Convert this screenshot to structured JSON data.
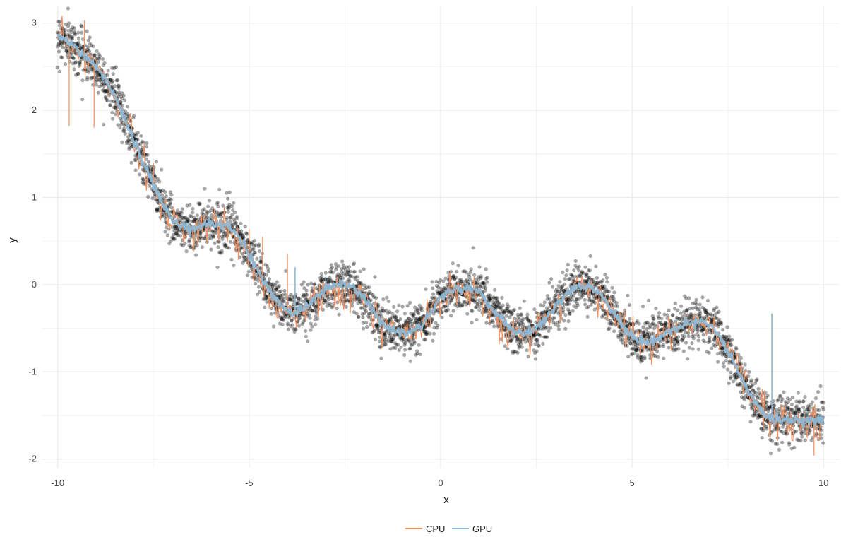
{
  "chart_data": {
    "type": "scatter",
    "xlabel": "x",
    "ylabel": "y",
    "xlim": [
      -10.4,
      10.4
    ],
    "ylim": [
      -2.1,
      3.2
    ],
    "x_ticks": [
      -10,
      -5,
      0,
      5,
      10
    ],
    "x_tick_labels": [
      "-10",
      "-5",
      "0",
      "5",
      "10"
    ],
    "y_ticks": [
      -2,
      -1,
      0,
      1,
      2,
      3
    ],
    "y_tick_labels": [
      "-2",
      "-1",
      "0",
      "1",
      "2",
      "3"
    ],
    "grid": true,
    "legend_position": "bottom",
    "points": {
      "color": "#000000",
      "opacity": 0.35,
      "x_range": [
        -10,
        10
      ],
      "count": 4000,
      "noise_sd": 0.13
    },
    "curve_x": [
      -10,
      -9.5,
      -9,
      -8.5,
      -8,
      -7.5,
      -7,
      -6.5,
      -6,
      -5.5,
      -5,
      -4.5,
      -4,
      -3.5,
      -3,
      -2.5,
      -2,
      -1.5,
      -1,
      -0.5,
      0,
      0.5,
      1,
      1.5,
      2,
      2.5,
      3,
      3.5,
      4,
      4.5,
      5,
      5.5,
      6,
      6.5,
      7,
      7.5,
      8,
      8.5,
      9,
      9.5,
      10
    ],
    "curve_y": [
      2.85,
      2.7,
      2.5,
      2.15,
      1.65,
      1.15,
      0.75,
      0.65,
      0.7,
      0.65,
      0.35,
      -0.05,
      -0.3,
      -0.25,
      -0.05,
      0.0,
      -0.15,
      -0.45,
      -0.55,
      -0.45,
      -0.15,
      -0.05,
      -0.1,
      -0.35,
      -0.55,
      -0.5,
      -0.25,
      -0.05,
      -0.05,
      -0.3,
      -0.6,
      -0.65,
      -0.55,
      -0.45,
      -0.45,
      -0.75,
      -1.2,
      -1.5,
      -1.55,
      -1.55,
      -1.55
    ],
    "series": [
      {
        "name": "CPU",
        "color": "#F28E5B"
      },
      {
        "name": "GPU",
        "color": "#8FB8D4"
      }
    ],
    "cpu_spikes": [
      {
        "x": -9.7,
        "y": 1.82
      },
      {
        "x": -9.3,
        "y": 3.03
      },
      {
        "x": -9.05,
        "y": 1.8
      },
      {
        "x": -7.5,
        "y": 1.4
      },
      {
        "x": -5.0,
        "y": 0.64
      },
      {
        "x": -4.65,
        "y": 0.55
      },
      {
        "x": -4.0,
        "y": 0.35
      },
      {
        "x": 9.75,
        "y": -1.96
      }
    ],
    "gpu_spikes": [
      {
        "x": -3.8,
        "y": 0.2
      },
      {
        "x": -3.0,
        "y": 0.1
      },
      {
        "x": 8.65,
        "y": -0.33
      }
    ]
  }
}
